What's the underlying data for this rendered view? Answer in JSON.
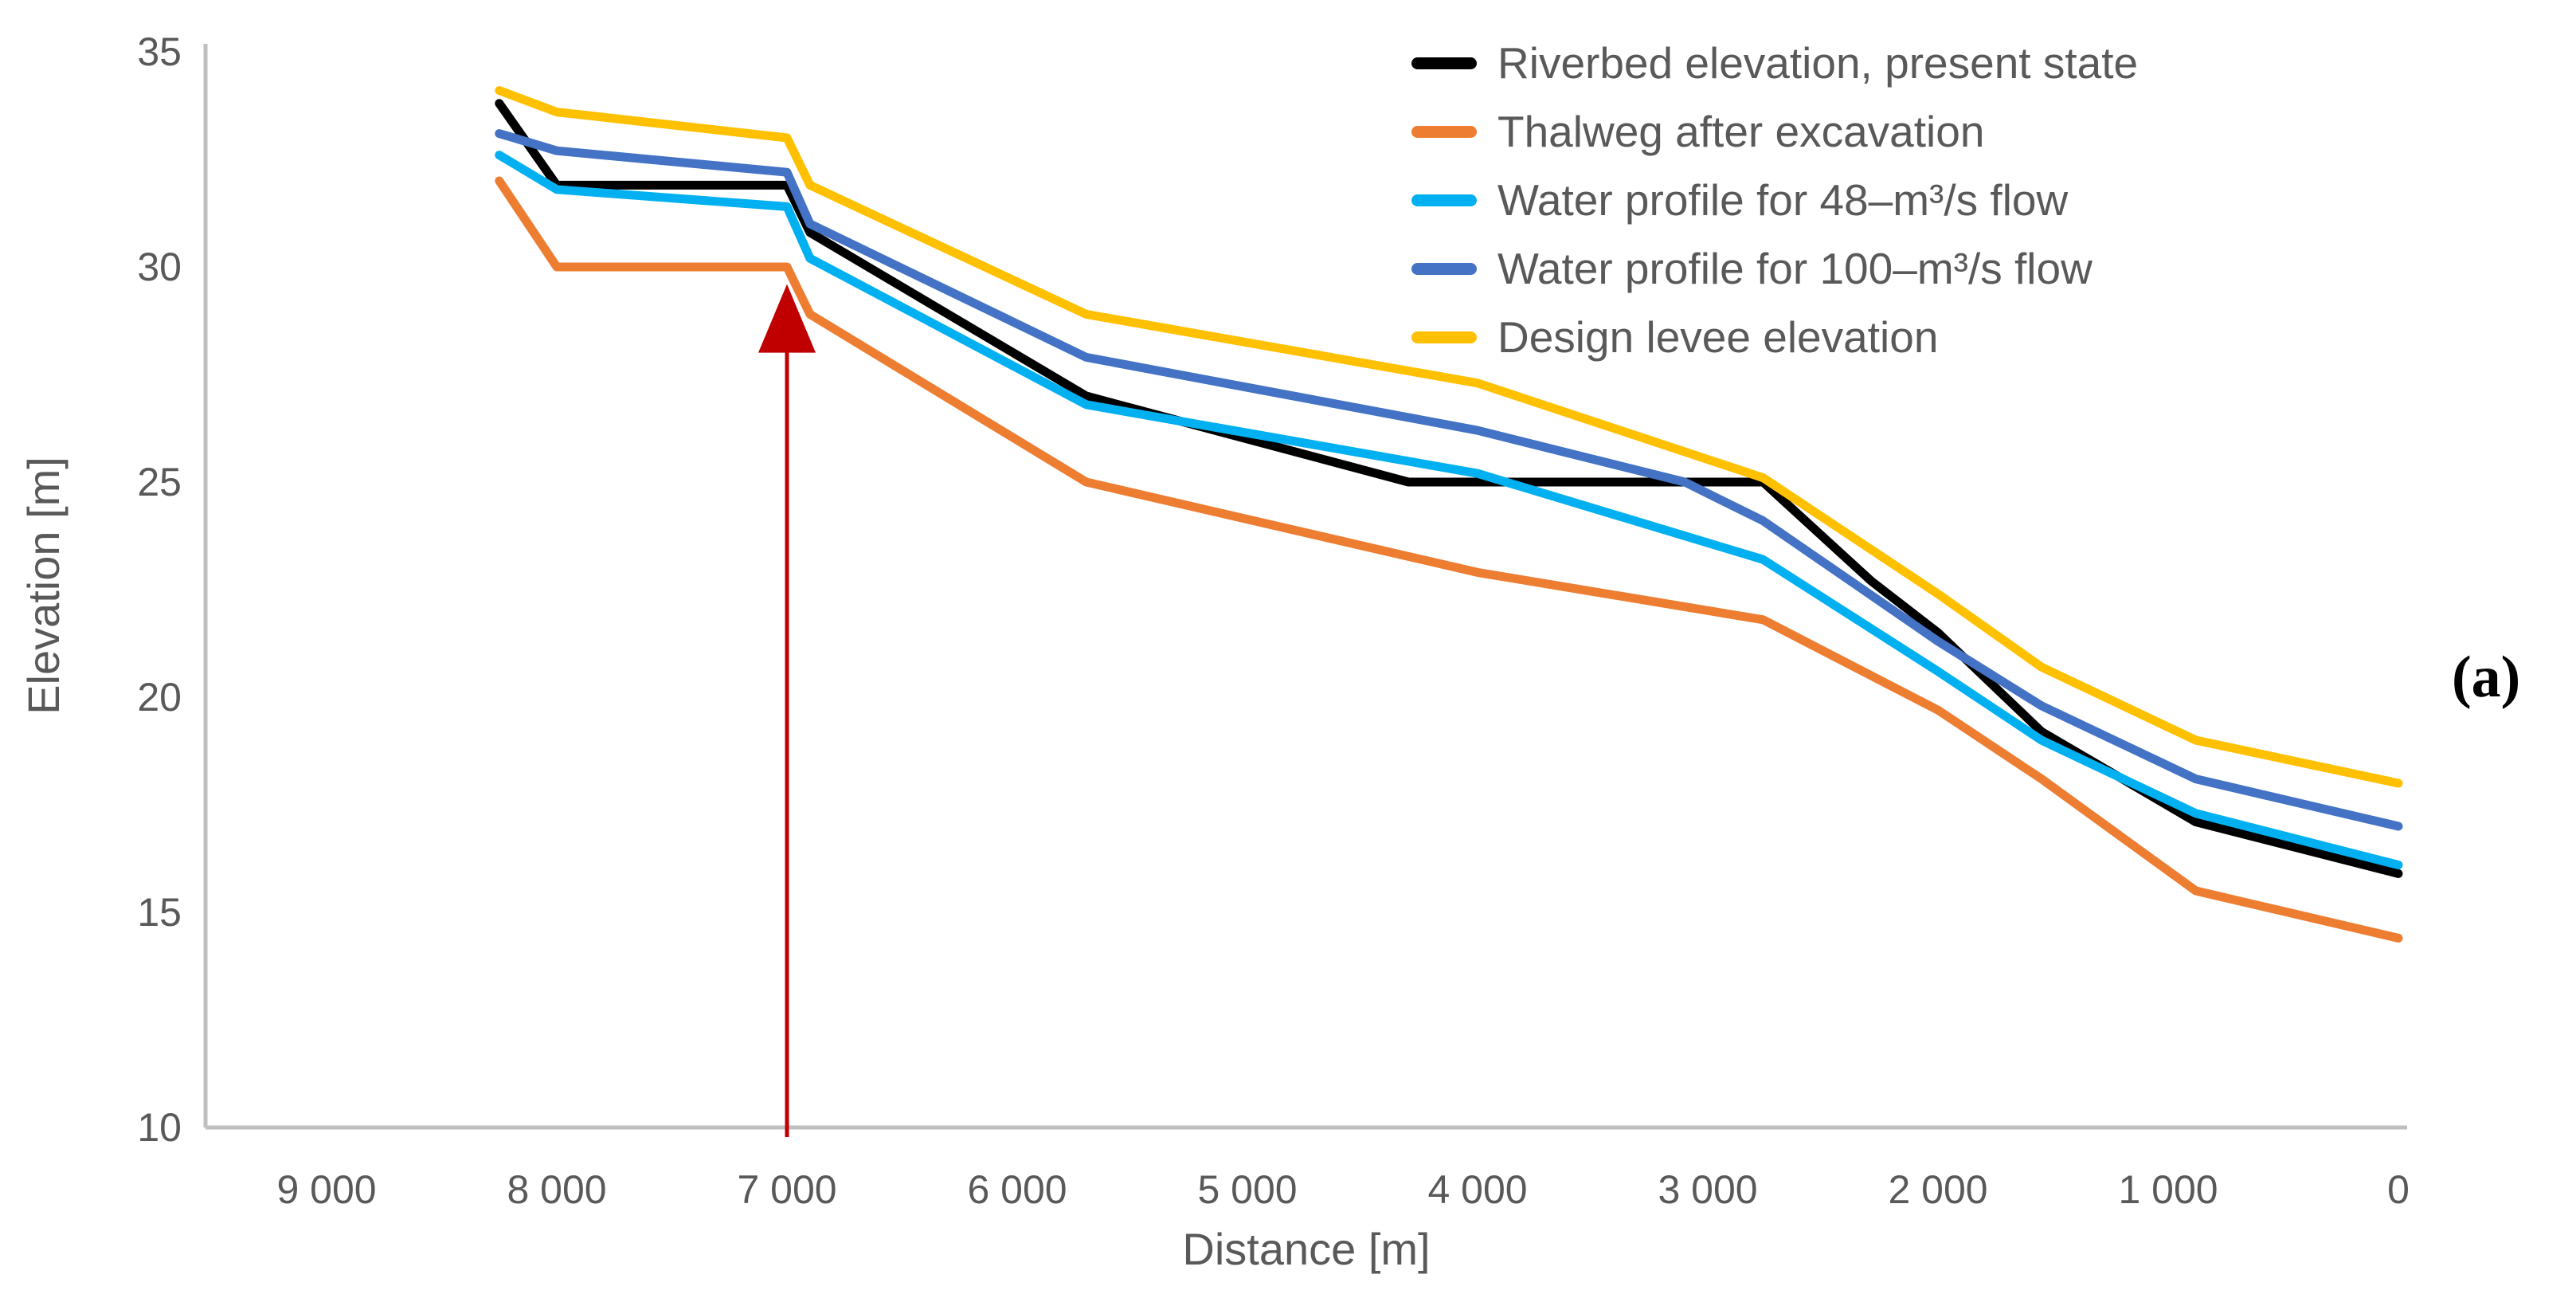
{
  "panel_label": "(a)",
  "y_axis": {
    "title": "Elevation [m]",
    "tick_labels": [
      "35",
      "30",
      "25",
      "20",
      "15",
      "10"
    ],
    "tick_values": [
      35,
      30,
      25,
      20,
      15,
      10
    ],
    "min": 10,
    "max": 35
  },
  "x_axis": {
    "title": "Distance [m]",
    "tick_labels": [
      "9 000",
      "8 000",
      "7 000",
      "6 000",
      "5 000",
      "4 000",
      "3 000",
      "2 000",
      "1 000",
      "0"
    ],
    "tick_values": [
      9000,
      8000,
      7000,
      6000,
      5000,
      4000,
      3000,
      2000,
      1000,
      0
    ],
    "reversed": true
  },
  "colors": {
    "background": "#FFFFFF",
    "axis_line": "#BFBFBF",
    "tick_text": "#595959",
    "axis_title_text": "#595959",
    "legend_text": "#595959",
    "arrow": "#C00000"
  },
  "chart_data": {
    "type": "line",
    "title": "",
    "xlabel": "Distance [m]",
    "ylabel": "Elevation [m]",
    "xlim": [
      9000,
      0
    ],
    "ylim": [
      10,
      35
    ],
    "grid": false,
    "legend_position": "top-right",
    "series": [
      {
        "id": "riverbed",
        "name": "Riverbed elevation, present state",
        "color": "#000000",
        "points": [
          [
            8250,
            33.8
          ],
          [
            8000,
            31.9
          ],
          [
            7000,
            31.9
          ],
          [
            6900,
            30.8
          ],
          [
            5700,
            27.0
          ],
          [
            4300,
            25.0
          ],
          [
            2760,
            25.0
          ],
          [
            2290,
            22.7
          ],
          [
            2000,
            21.5
          ],
          [
            1550,
            19.2
          ],
          [
            880,
            17.1
          ],
          [
            0,
            15.9
          ]
        ]
      },
      {
        "id": "thalweg",
        "name": "Thalweg after excavation",
        "color": "#ED7D31",
        "points": [
          [
            8250,
            32.0
          ],
          [
            8000,
            30.0
          ],
          [
            7000,
            30.0
          ],
          [
            6900,
            28.9
          ],
          [
            5700,
            25.0
          ],
          [
            4000,
            22.9
          ],
          [
            2760,
            21.8
          ],
          [
            2000,
            19.7
          ],
          [
            1550,
            18.1
          ],
          [
            880,
            15.5
          ],
          [
            0,
            14.4
          ]
        ]
      },
      {
        "id": "flow48",
        "name": "Water profile for 48–m³/s flow",
        "color": "#00B0F0",
        "points": [
          [
            8250,
            32.6
          ],
          [
            8000,
            31.8
          ],
          [
            7000,
            31.4
          ],
          [
            6900,
            30.2
          ],
          [
            5700,
            26.8
          ],
          [
            4000,
            25.2
          ],
          [
            2760,
            23.2
          ],
          [
            2000,
            20.6
          ],
          [
            1550,
            19.0
          ],
          [
            880,
            17.3
          ],
          [
            0,
            16.1
          ]
        ]
      },
      {
        "id": "flow100",
        "name": "Water profile for 100–m³/s flow",
        "color": "#4472C4",
        "points": [
          [
            8250,
            33.1
          ],
          [
            8000,
            32.7
          ],
          [
            7000,
            32.2
          ],
          [
            6900,
            31.0
          ],
          [
            5700,
            27.9
          ],
          [
            4000,
            26.2
          ],
          [
            3100,
            25.0
          ],
          [
            2760,
            24.1
          ],
          [
            2000,
            21.3
          ],
          [
            1550,
            19.8
          ],
          [
            880,
            18.1
          ],
          [
            0,
            17.0
          ]
        ]
      },
      {
        "id": "levee",
        "name": "Design levee elevation",
        "color": "#FFC000",
        "points": [
          [
            8250,
            34.1
          ],
          [
            8000,
            33.6
          ],
          [
            7000,
            33.0
          ],
          [
            6900,
            31.9
          ],
          [
            5700,
            28.9
          ],
          [
            4000,
            27.3
          ],
          [
            2760,
            25.1
          ],
          [
            2000,
            22.4
          ],
          [
            1550,
            20.7
          ],
          [
            880,
            19.0
          ],
          [
            0,
            18.0
          ]
        ]
      }
    ],
    "annotations": [
      {
        "type": "vertical-arrow",
        "x": 7000,
        "from_elevation": 10,
        "to_elevation": 29.6,
        "color": "#C00000"
      }
    ]
  }
}
